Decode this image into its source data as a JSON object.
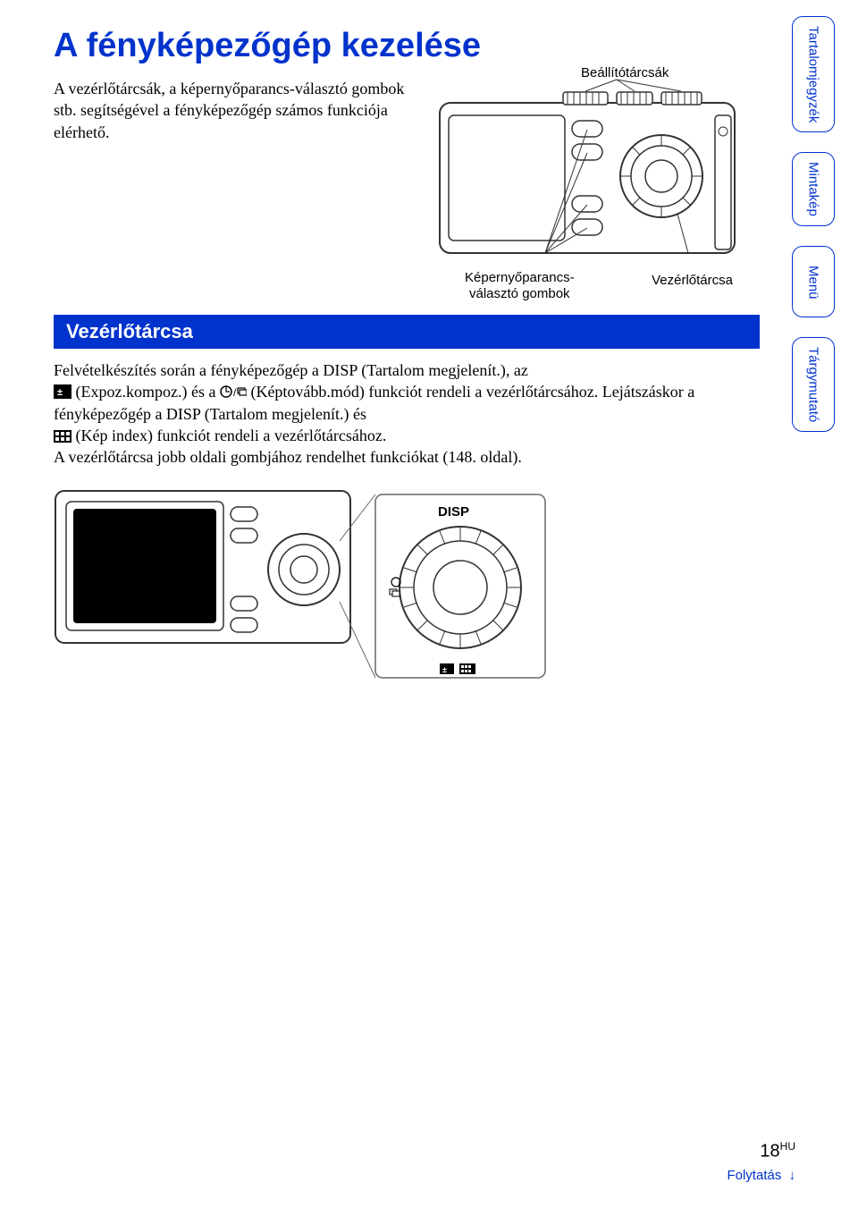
{
  "title": "A fényképezőgép kezelése",
  "intro": "A vezérlőtárcsák, a képernyőparancs-választó gombok stb. segítségével a fényképezőgép számos funkciója elérhető.",
  "diagram_top": {
    "label_top": "Beállítótárcsák",
    "label_bottom_left": "Képernyőparancs-\nválasztó gombok",
    "label_bottom_right": "Vezérlőtárcsa",
    "stroke": "#333333",
    "fill": "#ffffff"
  },
  "section_header": "Vezérlőtárcsa",
  "body_p1": "Felvételkészítés során a fényképezőgép a DISP (Tartalom megjelenít.), az",
  "body_p2a": " (Expoz.kompoz.) és a ",
  "body_p2b": " (Képtovább.mód) funkciót rendeli a vezérlőtárcsához. Lejátszáskor a fényképezőgép a DISP (Tartalom megjelenít.) és",
  "body_p3": " (Kép index) funkciót rendeli a vezérlőtárcsához.",
  "body_p4": "A vezérlőtárcsa jobb oldali gombjához rendelhet funkciókat (148. oldal).",
  "diagram_bottom": {
    "disp_label": "DISP",
    "stroke": "#333333"
  },
  "tabs": [
    "Tartalomjegyzék",
    "Mintakép",
    "Menü",
    "Tárgymutató"
  ],
  "footer": {
    "page_number": "18",
    "page_suffix": "HU",
    "continue": "Folytatás"
  },
  "colors": {
    "primary_blue": "#0033cc",
    "text": "#000000",
    "background": "#ffffff"
  }
}
